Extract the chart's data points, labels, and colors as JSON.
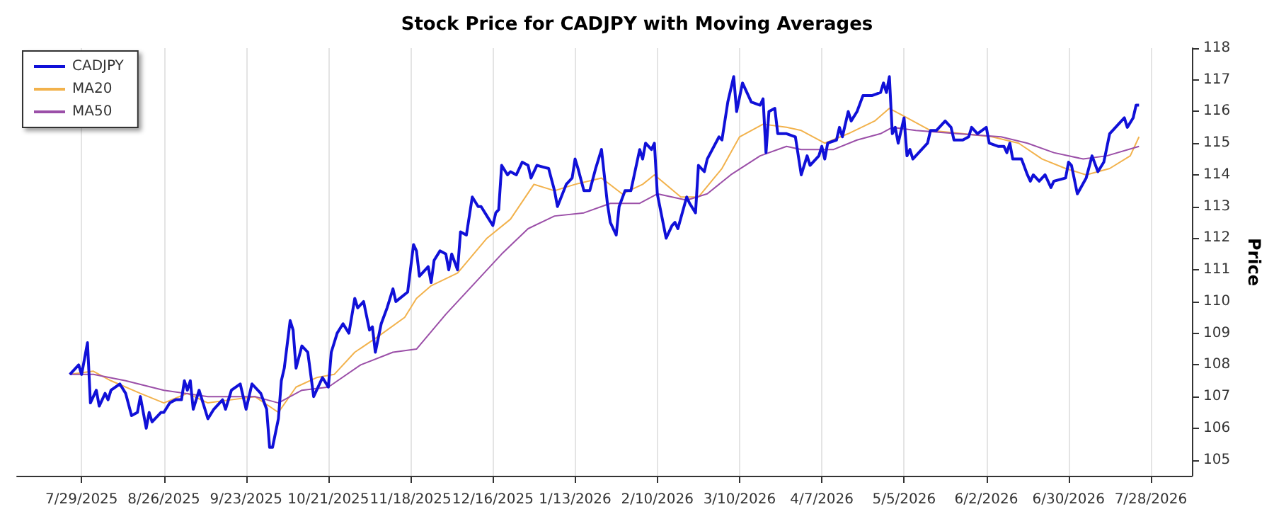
{
  "chart_data": {
    "type": "line",
    "title": "Stock Price for CADJPY with Moving Averages",
    "ylabel": "Price",
    "xlim": [
      "2025-07-07",
      "2026-08-11"
    ],
    "ylim": [
      104.5,
      118
    ],
    "xticks": [
      {
        "value": "2025-07-29",
        "label": "7/29/2025"
      },
      {
        "value": "2025-08-26",
        "label": "8/26/2025"
      },
      {
        "value": "2025-09-23",
        "label": "9/23/2025"
      },
      {
        "value": "2025-10-21",
        "label": "10/21/2025"
      },
      {
        "value": "2025-11-18",
        "label": "11/18/2025"
      },
      {
        "value": "2025-12-16",
        "label": "12/16/2025"
      },
      {
        "value": "2026-01-13",
        "label": "1/13/2026"
      },
      {
        "value": "2026-02-10",
        "label": "2/10/2026"
      },
      {
        "value": "2026-03-10",
        "label": "3/10/2026"
      },
      {
        "value": "2026-04-07",
        "label": "4/7/2026"
      },
      {
        "value": "2026-05-05",
        "label": "5/5/2026"
      },
      {
        "value": "2026-06-02",
        "label": "6/2/2026"
      },
      {
        "value": "2026-06-30",
        "label": "6/30/2026"
      },
      {
        "value": "2026-07-28",
        "label": "7/28/2026"
      }
    ],
    "yticks": [
      105,
      106,
      107,
      108,
      109,
      110,
      111,
      112,
      113,
      114,
      115,
      116,
      117,
      118
    ],
    "grid": "x",
    "legend": "top left",
    "marker": "none",
    "line_style": "solid",
    "series": [
      {
        "name": "CADJPY",
        "color": "#1010d8",
        "x": [
          "2025-07-25",
          "2025-07-28",
          "2025-07-29",
          "2025-07-31",
          "2025-08-01",
          "2025-08-03",
          "2025-08-04",
          "2025-08-06",
          "2025-08-07",
          "2025-08-08",
          "2025-08-11",
          "2025-08-13",
          "2025-08-15",
          "2025-08-17",
          "2025-08-18",
          "2025-08-20",
          "2025-08-21",
          "2025-08-22",
          "2025-08-25",
          "2025-08-26",
          "2025-08-28",
          "2025-08-30",
          "2025-09-01",
          "2025-09-02",
          "2025-09-03",
          "2025-09-04",
          "2025-09-05",
          "2025-09-07",
          "2025-09-10",
          "2025-09-12",
          "2025-09-15",
          "2025-09-16",
          "2025-09-18",
          "2025-09-21",
          "2025-09-23",
          "2025-09-25",
          "2025-09-28",
          "2025-09-30",
          "2025-10-01",
          "2025-10-02",
          "2025-10-04",
          "2025-10-05",
          "2025-10-06",
          "2025-10-08",
          "2025-10-09",
          "2025-10-10",
          "2025-10-12",
          "2025-10-14",
          "2025-10-16",
          "2025-10-19",
          "2025-10-21",
          "2025-10-22",
          "2025-10-24",
          "2025-10-26",
          "2025-10-28",
          "2025-10-30",
          "2025-10-31",
          "2025-11-02",
          "2025-11-04",
          "2025-11-05",
          "2025-11-06",
          "2025-11-08",
          "2025-11-10",
          "2025-11-12",
          "2025-11-13",
          "2025-11-17",
          "2025-11-19",
          "2025-11-20",
          "2025-11-21",
          "2025-11-24",
          "2025-11-25",
          "2025-11-26",
          "2025-11-28",
          "2025-11-30",
          "2025-12-01",
          "2025-12-02",
          "2025-12-04",
          "2025-12-05",
          "2025-12-07",
          "2025-12-09",
          "2025-12-11",
          "2025-12-12",
          "2025-12-14",
          "2025-12-16",
          "2025-12-17",
          "2025-12-18",
          "2025-12-19",
          "2025-12-21",
          "2025-12-22",
          "2025-12-24",
          "2025-12-26",
          "2025-12-28",
          "2025-12-29",
          "2025-12-31",
          "2026-01-04",
          "2026-01-06",
          "2026-01-07",
          "2026-01-10",
          "2026-01-12",
          "2026-01-13",
          "2026-01-14",
          "2026-01-16",
          "2026-01-18",
          "2026-01-20",
          "2026-01-22",
          "2026-01-24",
          "2026-01-25",
          "2026-01-27",
          "2026-01-28",
          "2026-01-30",
          "2026-02-01",
          "2026-02-04",
          "2026-02-05",
          "2026-02-06",
          "2026-02-08",
          "2026-02-09",
          "2026-02-10",
          "2026-02-13",
          "2026-02-15",
          "2026-02-16",
          "2026-02-17",
          "2026-02-20",
          "2026-02-21",
          "2026-02-23",
          "2026-02-24",
          "2026-02-26",
          "2026-02-27",
          "2026-03-03",
          "2026-03-04",
          "2026-03-06",
          "2026-03-08",
          "2026-03-09",
          "2026-03-11",
          "2026-03-14",
          "2026-03-17",
          "2026-03-18",
          "2026-03-19",
          "2026-03-20",
          "2026-03-22",
          "2026-03-23",
          "2026-03-26",
          "2026-03-29",
          "2026-03-31",
          "2026-04-02",
          "2026-04-03",
          "2026-04-06",
          "2026-04-07",
          "2026-04-08",
          "2026-04-09",
          "2026-04-12",
          "2026-04-13",
          "2026-04-14",
          "2026-04-16",
          "2026-04-17",
          "2026-04-19",
          "2026-04-21",
          "2026-04-24",
          "2026-04-27",
          "2026-04-28",
          "2026-04-29",
          "2026-04-30",
          "2026-05-01",
          "2026-05-02",
          "2026-05-03",
          "2026-05-05",
          "2026-05-06",
          "2026-05-07",
          "2026-05-08",
          "2026-05-13",
          "2026-05-14",
          "2026-05-16",
          "2026-05-19",
          "2026-05-21",
          "2026-05-22",
          "2026-05-25",
          "2026-05-27",
          "2026-05-28",
          "2026-05-30",
          "2026-06-02",
          "2026-06-03",
          "2026-06-06",
          "2026-06-08",
          "2026-06-09",
          "2026-06-10",
          "2026-06-11",
          "2026-06-14",
          "2026-06-16",
          "2026-06-17",
          "2026-06-18",
          "2026-06-20",
          "2026-06-22",
          "2026-06-24",
          "2026-06-25",
          "2026-06-29",
          "2026-06-30",
          "2026-07-01",
          "2026-07-03",
          "2026-07-06",
          "2026-07-08",
          "2026-07-10",
          "2026-07-12",
          "2026-07-14",
          "2026-07-17",
          "2026-07-19",
          "2026-07-20",
          "2026-07-22",
          "2026-07-23",
          "2026-07-24"
        ],
        "values": [
          107.7,
          108.0,
          107.7,
          108.7,
          106.8,
          107.2,
          106.7,
          107.1,
          106.9,
          107.2,
          107.4,
          107.1,
          106.4,
          106.5,
          107.0,
          106.0,
          106.5,
          106.2,
          106.5,
          106.5,
          106.8,
          106.9,
          106.9,
          107.5,
          107.2,
          107.5,
          106.6,
          107.2,
          106.3,
          106.6,
          106.9,
          106.6,
          107.2,
          107.4,
          106.6,
          107.4,
          107.1,
          106.6,
          105.4,
          105.4,
          106.3,
          107.5,
          107.9,
          109.4,
          109.1,
          107.9,
          108.6,
          108.4,
          107.0,
          107.6,
          107.3,
          108.4,
          109.0,
          109.3,
          109.0,
          110.1,
          109.8,
          110.0,
          109.1,
          109.2,
          108.4,
          109.3,
          109.8,
          110.4,
          110.0,
          110.3,
          111.8,
          111.6,
          110.8,
          111.1,
          110.6,
          111.3,
          111.6,
          111.5,
          111.0,
          111.5,
          111.0,
          112.2,
          112.1,
          113.3,
          113.0,
          113.0,
          112.7,
          112.4,
          112.8,
          112.9,
          114.3,
          114.0,
          114.1,
          114.0,
          114.4,
          114.3,
          113.9,
          114.3,
          114.2,
          113.5,
          113.0,
          113.7,
          113.9,
          114.5,
          114.2,
          113.5,
          113.5,
          114.2,
          114.8,
          113.1,
          112.5,
          112.1,
          113.0,
          113.5,
          113.5,
          114.8,
          114.5,
          115.0,
          114.8,
          115.0,
          113.4,
          112.0,
          112.4,
          112.5,
          112.3,
          113.3,
          113.1,
          112.8,
          114.3,
          114.1,
          114.5,
          115.2,
          115.1,
          116.3,
          117.1,
          116.0,
          116.9,
          116.3,
          116.2,
          116.4,
          114.7,
          116.0,
          116.1,
          115.3,
          115.3,
          115.2,
          114.0,
          114.6,
          114.3,
          114.6,
          114.9,
          114.5,
          115.0,
          115.1,
          115.5,
          115.2,
          116.0,
          115.7,
          116.0,
          116.5,
          116.5,
          116.6,
          116.9,
          116.6,
          117.1,
          115.3,
          115.5,
          115.0,
          115.8,
          114.6,
          114.8,
          114.5,
          115.0,
          115.4,
          115.4,
          115.7,
          115.5,
          115.1,
          115.1,
          115.2,
          115.5,
          115.3,
          115.5,
          115.0,
          114.9,
          114.9,
          114.7,
          115.0,
          114.5,
          114.5,
          114.0,
          113.8,
          114.0,
          113.8,
          114.0,
          113.6,
          113.8,
          113.9,
          114.4,
          114.3,
          113.4,
          113.9,
          114.6,
          114.1,
          114.4,
          115.3,
          115.6,
          115.8,
          115.5,
          115.8,
          116.2,
          116.2
        ]
      },
      {
        "name": "MA20",
        "color": "#f2b24c",
        "x": [
          "2025-07-25",
          "2025-08-02",
          "2025-08-08",
          "2025-08-18",
          "2025-08-26",
          "2025-09-03",
          "2025-09-10",
          "2025-09-18",
          "2025-09-26",
          "2025-10-04",
          "2025-10-10",
          "2025-10-17",
          "2025-10-23",
          "2025-10-30",
          "2025-11-07",
          "2025-11-16",
          "2025-11-20",
          "2025-11-25",
          "2025-12-04",
          "2025-12-14",
          "2025-12-22",
          "2025-12-30",
          "2026-01-06",
          "2026-01-13",
          "2026-01-22",
          "2026-01-29",
          "2026-02-05",
          "2026-02-09",
          "2026-02-18",
          "2026-02-24",
          "2026-03-04",
          "2026-03-10",
          "2026-03-18",
          "2026-03-26",
          "2026-03-31",
          "2026-04-08",
          "2026-04-16",
          "2026-04-25",
          "2026-04-30",
          "2026-05-06",
          "2026-05-14",
          "2026-05-25",
          "2026-06-04",
          "2026-06-13",
          "2026-06-21",
          "2026-06-29",
          "2026-07-06",
          "2026-07-14",
          "2026-07-21",
          "2026-07-24"
        ],
        "values": [
          107.7,
          107.8,
          107.5,
          107.1,
          106.8,
          107.1,
          106.8,
          106.9,
          107.0,
          106.5,
          107.3,
          107.6,
          107.7,
          108.4,
          108.9,
          109.5,
          110.1,
          110.5,
          110.9,
          112.0,
          112.6,
          113.7,
          113.5,
          113.7,
          113.9,
          113.4,
          113.7,
          114.0,
          113.3,
          113.3,
          114.2,
          115.2,
          115.6,
          115.5,
          115.4,
          115.0,
          115.3,
          115.7,
          116.1,
          115.8,
          115.4,
          115.3,
          115.2,
          115.0,
          114.5,
          114.2,
          114.0,
          114.2,
          114.6,
          115.2
        ]
      },
      {
        "name": "MA50",
        "color": "#9b4fa8",
        "x": [
          "2025-07-25",
          "2025-08-02",
          "2025-08-13",
          "2025-08-26",
          "2025-09-10",
          "2025-09-26",
          "2025-10-04",
          "2025-10-12",
          "2025-10-21",
          "2025-11-01",
          "2025-11-12",
          "2025-11-20",
          "2025-11-30",
          "2025-12-09",
          "2025-12-19",
          "2025-12-28",
          "2026-01-06",
          "2026-01-16",
          "2026-01-25",
          "2026-02-04",
          "2026-02-10",
          "2026-02-20",
          "2026-02-27",
          "2026-03-07",
          "2026-03-17",
          "2026-03-26",
          "2026-03-31",
          "2026-04-11",
          "2026-04-19",
          "2026-04-27",
          "2026-05-01",
          "2026-05-09",
          "2026-05-23",
          "2026-06-07",
          "2026-06-16",
          "2026-06-25",
          "2026-07-05",
          "2026-07-13",
          "2026-07-24"
        ],
        "values": [
          107.7,
          107.7,
          107.5,
          107.2,
          107.0,
          107.0,
          106.8,
          107.2,
          107.3,
          108.0,
          108.4,
          108.5,
          109.6,
          110.5,
          111.5,
          112.3,
          112.7,
          112.8,
          113.1,
          113.1,
          113.4,
          113.2,
          113.4,
          114.0,
          114.6,
          114.9,
          114.8,
          114.8,
          115.1,
          115.3,
          115.5,
          115.4,
          115.3,
          115.2,
          115.0,
          114.7,
          114.5,
          114.6,
          114.9
        ]
      }
    ]
  }
}
